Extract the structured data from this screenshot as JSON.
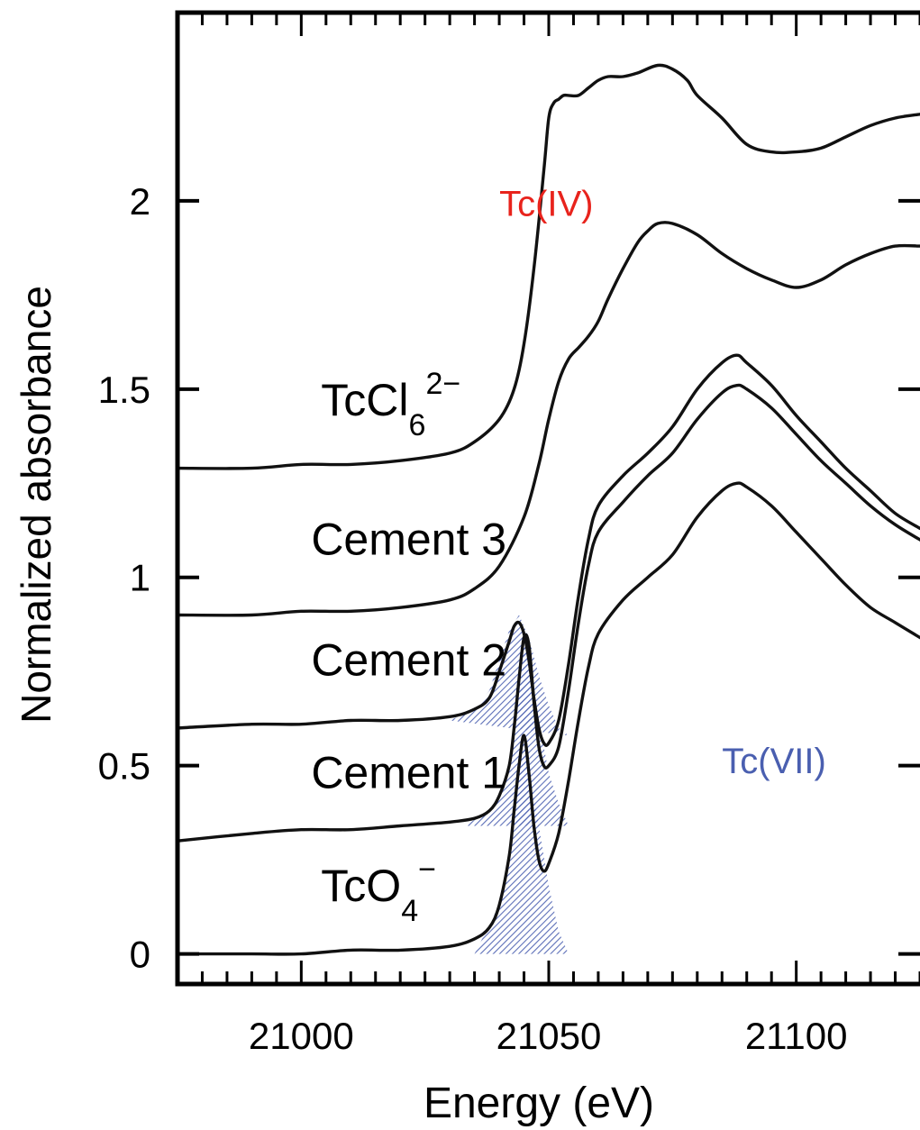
{
  "chart_data": {
    "type": "line",
    "xlabel": "Energy (eV)",
    "ylabel": "Normalized absorbance",
    "xlim": [
      20975,
      21125
    ],
    "ylim": [
      -0.08,
      2.5
    ],
    "xticks": [
      21000,
      21050,
      21100
    ],
    "xtick_labels": [
      "21000",
      "21050",
      "21100"
    ],
    "yticks": [
      0,
      0.5,
      1,
      1.5,
      2
    ],
    "ytick_labels": [
      "0",
      "0.5",
      "1",
      "1.5",
      "2"
    ],
    "grid": false,
    "annotations": [
      {
        "text": "Tc(IV)",
        "x": 21040,
        "y": 1.96,
        "color": "#e8231c"
      },
      {
        "text": "Tc(VII)",
        "x": 21085,
        "y": 0.48,
        "color": "#4a5fb0"
      }
    ],
    "series": [
      {
        "label_main": "TcO",
        "label_sub": "4",
        "label_sup": "−",
        "label_x": 21004,
        "label_y": 0.14,
        "x": [
          20975,
          20990,
          21000,
          21010,
          21020,
          21030,
          21035,
          21038,
          21040,
          21042,
          21043,
          21044,
          21045,
          21046,
          21047,
          21048,
          21049,
          21050,
          21052,
          21054,
          21056,
          21058,
          21060,
          21065,
          21070,
          21075,
          21080,
          21085,
          21088,
          21090,
          21095,
          21100,
          21105,
          21110,
          21115,
          21120,
          21125
        ],
        "y": [
          0.0,
          0.0,
          0.0,
          0.01,
          0.01,
          0.02,
          0.04,
          0.07,
          0.13,
          0.26,
          0.38,
          0.5,
          0.58,
          0.48,
          0.34,
          0.25,
          0.22,
          0.24,
          0.32,
          0.46,
          0.62,
          0.76,
          0.85,
          0.94,
          1.0,
          1.06,
          1.16,
          1.23,
          1.25,
          1.24,
          1.19,
          1.12,
          1.05,
          0.98,
          0.92,
          0.88,
          0.84
        ],
        "shaded_peak": {
          "x": [
            21035,
            21040,
            21042,
            21044,
            21045,
            21046,
            21048,
            21050,
            21052,
            21054
          ],
          "y": [
            0.0,
            0.13,
            0.26,
            0.48,
            0.58,
            0.5,
            0.34,
            0.18,
            0.06,
            0.0
          ]
        }
      },
      {
        "label_main": "Cement 1",
        "label_x": 21002,
        "label_y": 0.44,
        "x": [
          20975,
          20990,
          21000,
          21010,
          21020,
          21030,
          21035,
          21038,
          21040,
          21042,
          21043,
          21044,
          21045,
          21046,
          21047,
          21048,
          21049,
          21050,
          21052,
          21054,
          21056,
          21058,
          21060,
          21065,
          21070,
          21075,
          21080,
          21085,
          21088,
          21090,
          21095,
          21100,
          21105,
          21110,
          21115,
          21120,
          21125
        ],
        "y": [
          0.3,
          0.32,
          0.33,
          0.33,
          0.34,
          0.35,
          0.36,
          0.38,
          0.42,
          0.5,
          0.6,
          0.73,
          0.84,
          0.82,
          0.67,
          0.55,
          0.5,
          0.5,
          0.55,
          0.7,
          0.88,
          1.03,
          1.12,
          1.2,
          1.27,
          1.33,
          1.42,
          1.49,
          1.51,
          1.5,
          1.45,
          1.38,
          1.31,
          1.25,
          1.19,
          1.14,
          1.1
        ],
        "shaded_peak": {
          "x": [
            21033,
            21038,
            21040,
            21042,
            21044,
            21045,
            21046,
            21048,
            21050,
            21052,
            21054
          ],
          "y": [
            0.34,
            0.38,
            0.42,
            0.5,
            0.73,
            0.84,
            0.78,
            0.62,
            0.48,
            0.4,
            0.34
          ]
        }
      },
      {
        "label_main": "Cement 2",
        "label_x": 21002,
        "label_y": 0.74,
        "x": [
          20975,
          20990,
          21000,
          21010,
          21020,
          21030,
          21035,
          21038,
          21040,
          21042,
          21043,
          21044,
          21045,
          21046,
          21047,
          21048,
          21049,
          21050,
          21052,
          21054,
          21056,
          21058,
          21060,
          21065,
          21070,
          21075,
          21080,
          21085,
          21088,
          21090,
          21095,
          21100,
          21105,
          21110,
          21115,
          21120,
          21125
        ],
        "y": [
          0.6,
          0.61,
          0.61,
          0.62,
          0.62,
          0.63,
          0.65,
          0.68,
          0.75,
          0.83,
          0.87,
          0.88,
          0.85,
          0.78,
          0.68,
          0.6,
          0.56,
          0.56,
          0.62,
          0.77,
          0.95,
          1.1,
          1.19,
          1.27,
          1.33,
          1.4,
          1.5,
          1.57,
          1.59,
          1.57,
          1.51,
          1.43,
          1.36,
          1.29,
          1.23,
          1.17,
          1.13
        ],
        "shaded_peak": {
          "x": [
            21030,
            21035,
            21038,
            21040,
            21042,
            21044,
            21046,
            21048,
            21050,
            21052,
            21054
          ],
          "y": [
            0.62,
            0.65,
            0.7,
            0.78,
            0.86,
            0.9,
            0.84,
            0.74,
            0.66,
            0.6,
            0.58
          ]
        }
      },
      {
        "label_main": "Cement 3",
        "label_x": 21002,
        "label_y": 1.06,
        "x": [
          20975,
          20990,
          21000,
          21010,
          21020,
          21030,
          21035,
          21040,
          21045,
          21048,
          21050,
          21052,
          21054,
          21056,
          21058,
          21060,
          21062,
          21065,
          21068,
          21070,
          21072,
          21075,
          21080,
          21085,
          21090,
          21095,
          21100,
          21105,
          21110,
          21115,
          21120,
          21125
        ],
        "y": [
          0.9,
          0.9,
          0.91,
          0.91,
          0.92,
          0.94,
          0.97,
          1.03,
          1.16,
          1.3,
          1.42,
          1.52,
          1.58,
          1.61,
          1.64,
          1.68,
          1.74,
          1.82,
          1.89,
          1.92,
          1.94,
          1.94,
          1.91,
          1.86,
          1.82,
          1.79,
          1.77,
          1.79,
          1.83,
          1.86,
          1.88,
          1.88
        ]
      },
      {
        "label_main": "TcCl",
        "label_sub": "6",
        "label_sup": "2−",
        "label_x": 21004,
        "label_y": 1.43,
        "x": [
          20975,
          20990,
          21000,
          21010,
          21020,
          21030,
          21035,
          21040,
          21043,
          21045,
          21047,
          21049,
          21050,
          21051,
          21052,
          21053,
          21054,
          21056,
          21058,
          21060,
          21062,
          21065,
          21068,
          21072,
          21075,
          21078,
          21080,
          21085,
          21090,
          21095,
          21100,
          21105,
          21110,
          21115,
          21120,
          21125
        ],
        "y": [
          1.29,
          1.29,
          1.3,
          1.3,
          1.31,
          1.33,
          1.36,
          1.42,
          1.5,
          1.62,
          1.82,
          2.08,
          2.22,
          2.26,
          2.27,
          2.28,
          2.28,
          2.28,
          2.3,
          2.32,
          2.33,
          2.33,
          2.34,
          2.36,
          2.35,
          2.32,
          2.28,
          2.22,
          2.15,
          2.13,
          2.13,
          2.14,
          2.17,
          2.2,
          2.22,
          2.23
        ]
      }
    ]
  }
}
